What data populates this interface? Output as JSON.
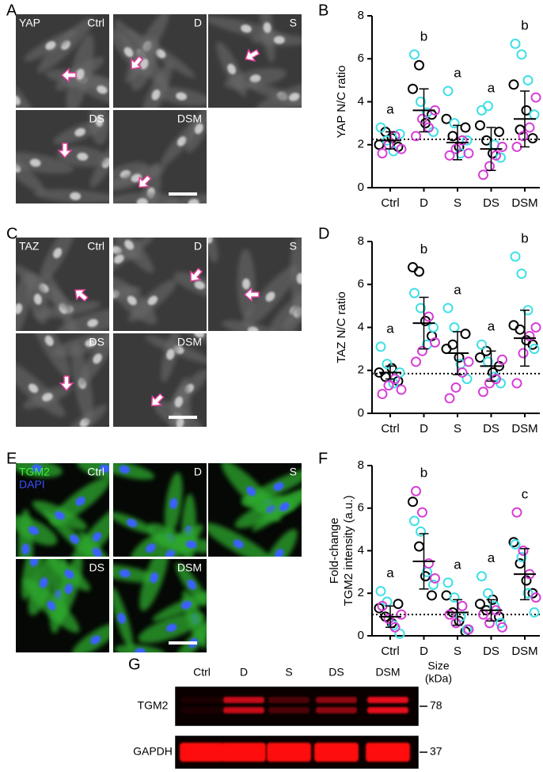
{
  "panel_labels": [
    "A",
    "B",
    "C",
    "D",
    "E",
    "F",
    "G"
  ],
  "image_panels": [
    {
      "channels": [
        "YAP"
      ],
      "conditions": [
        "Ctrl",
        "D",
        "S",
        "DS",
        "DSM"
      ]
    },
    {
      "channels": [
        "TAZ"
      ],
      "conditions": [
        "Ctrl",
        "D",
        "S",
        "DS",
        "DSM"
      ]
    },
    {
      "channels": [
        "TGM2",
        "DAPI"
      ],
      "conditions": [
        "Ctrl",
        "D",
        "S",
        "DS",
        "DSM"
      ]
    }
  ],
  "chart_data": [
    {
      "type": "dot",
      "y_label": [
        "YAP N/C ratio"
      ],
      "categories": [
        "Ctrl",
        "D",
        "S",
        "DS",
        "DSM"
      ],
      "ylim": [
        0,
        8
      ],
      "yticks": [
        0,
        2,
        4,
        6,
        8
      ],
      "reference_line": 2.25,
      "means": [
        2.2,
        3.6,
        2.1,
        1.8,
        3.2
      ],
      "sd": [
        0.4,
        1.0,
        0.8,
        1.0,
        1.3
      ],
      "annotations": [
        "a",
        "b",
        "a",
        "a",
        "b"
      ],
      "series": [
        {
          "color": "#000000",
          "values": [
            [
              2.0,
              2.6,
              2.3,
              1.9
            ],
            [
              4.6,
              5.7,
              3.0,
              3.4
            ],
            [
              3.2,
              2.4,
              1.9,
              2.8
            ],
            [
              2.9,
              2.2,
              1.6,
              2.6
            ],
            [
              4.8,
              2.7,
              3.6,
              2.3
            ]
          ]
        },
        {
          "color": "#3ee0e6",
          "values": [
            [
              2.8,
              2.2,
              1.7,
              2.5
            ],
            [
              6.2,
              4.0,
              3.5,
              2.6
            ],
            [
              4.5,
              3.0,
              1.6,
              2.2
            ],
            [
              3.6,
              3.8,
              2.0,
              1.4
            ],
            [
              6.7,
              6.2,
              5.0,
              3.4
            ]
          ]
        },
        {
          "color": "#d63fd6",
          "values": [
            [
              1.6,
              2.0,
              2.4,
              1.8
            ],
            [
              2.4,
              3.2,
              2.8,
              3.6
            ],
            [
              1.5,
              1.8,
              2.2,
              1.6
            ],
            [
              0.6,
              1.0,
              1.5,
              1.9
            ],
            [
              1.9,
              2.4,
              2.8,
              4.2
            ]
          ]
        }
      ]
    },
    {
      "type": "dot",
      "y_label": [
        "TAZ N/C ratio"
      ],
      "categories": [
        "Ctrl",
        "D",
        "S",
        "DS",
        "DSM"
      ],
      "ylim": [
        0,
        8
      ],
      "yticks": [
        0,
        2,
        4,
        6,
        8
      ],
      "reference_line": 1.85,
      "means": [
        1.9,
        4.2,
        2.8,
        2.2,
        3.5
      ],
      "sd": [
        0.3,
        1.2,
        1.0,
        0.7,
        1.3
      ],
      "annotations": [
        "a",
        "b",
        "a",
        "a",
        "b"
      ],
      "series": [
        {
          "color": "#000000",
          "values": [
            [
              1.9,
              1.7,
              2.1,
              1.5
            ],
            [
              6.8,
              6.6,
              4.3,
              3.6
            ],
            [
              3.0,
              3.2,
              2.6,
              3.7
            ],
            [
              2.6,
              2.9,
              1.9,
              2.2
            ],
            [
              4.1,
              3.9,
              3.4,
              3.2
            ]
          ]
        },
        {
          "color": "#3ee0e6",
          "values": [
            [
              3.1,
              2.3,
              1.4,
              1.9
            ],
            [
              5.6,
              4.9,
              3.2,
              4.0
            ],
            [
              4.9,
              4.0,
              2.3,
              1.6
            ],
            [
              3.2,
              2.4,
              1.7,
              1.4
            ],
            [
              7.3,
              6.5,
              4.8,
              3.0
            ]
          ]
        },
        {
          "color": "#d63fd6",
          "values": [
            [
              0.9,
              1.3,
              1.6,
              1.1
            ],
            [
              2.4,
              2.9,
              4.5,
              3.3
            ],
            [
              0.7,
              1.2,
              1.9,
              2.4
            ],
            [
              1.0,
              1.4,
              1.6,
              2.5
            ],
            [
              1.4,
              2.8,
              3.6,
              4.0
            ]
          ]
        }
      ]
    },
    {
      "type": "dot",
      "y_label": [
        "Fold-change",
        "TGM2 intensity (a.u.)"
      ],
      "categories": [
        "Ctrl",
        "D",
        "S",
        "DS",
        "DSM"
      ],
      "ylim": [
        0,
        8
      ],
      "yticks": [
        0,
        2,
        4,
        6,
        8
      ],
      "reference_line": 1.0,
      "means": [
        0.9,
        3.5,
        1.1,
        1.2,
        2.9
      ],
      "sd": [
        0.5,
        1.3,
        0.6,
        0.5,
        1.2
      ],
      "annotations": [
        "a",
        "b",
        "a",
        "a",
        "c"
      ],
      "series": [
        {
          "color": "#000000",
          "values": [
            [
              1.3,
              0.9,
              0.6,
              1.5
            ],
            [
              6.3,
              4.2,
              2.8,
              1.9
            ],
            [
              1.9,
              1.1,
              0.7,
              0.2
            ],
            [
              1.5,
              1.2,
              1.7,
              0.9
            ],
            [
              4.4,
              3.4,
              2.6,
              2.0
            ]
          ]
        },
        {
          "color": "#3ee0e6",
          "values": [
            [
              2.1,
              1.6,
              0.5,
              0.1
            ],
            [
              5.4,
              4.9,
              3.0,
              2.4
            ],
            [
              2.5,
              1.8,
              0.9,
              0.3
            ],
            [
              2.8,
              2.0,
              1.4,
              0.6
            ],
            [
              4.3,
              3.7,
              2.0,
              1.1
            ]
          ]
        },
        {
          "color": "#d63fd6",
          "values": [
            [
              1.4,
              0.8,
              0.4,
              1.0
            ],
            [
              6.8,
              5.8,
              3.4,
              2.7
            ],
            [
              1.0,
              0.6,
              1.4,
              0.3
            ],
            [
              1.0,
              0.6,
              1.2,
              0.4
            ],
            [
              5.8,
              4.0,
              2.9,
              1.8
            ]
          ]
        }
      ]
    }
  ],
  "blot": {
    "lanes": [
      "Ctrl",
      "D",
      "S",
      "DS",
      "DSM"
    ],
    "size_header": [
      "Size",
      "(kDa)"
    ],
    "rows": [
      {
        "label": "TGM2",
        "size": "78"
      },
      {
        "label": "GAPDH",
        "size": "37"
      }
    ]
  }
}
